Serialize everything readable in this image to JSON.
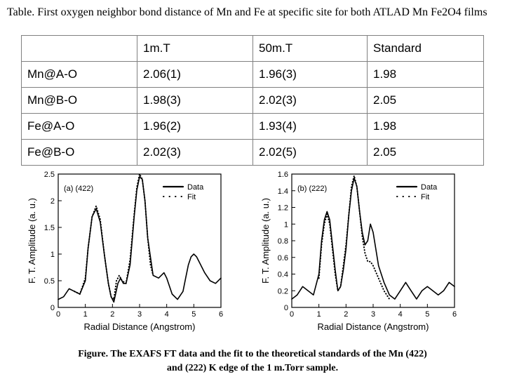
{
  "table_caption": "Table. First oxygen neighbor bond distance of Mn and Fe at specific site for both ATLAD Mn Fe2O4 films",
  "table": {
    "headers": [
      "",
      "1m.T",
      "50m.T",
      "Standard"
    ],
    "rows": [
      [
        "Mn@A-O",
        "2.06(1)",
        "1.96(3)",
        "1.98"
      ],
      [
        "Mn@B-O",
        "1.98(3)",
        "2.02(3)",
        "2.05"
      ],
      [
        "Fe@A-O",
        "1.96(2)",
        "1.93(4)",
        "1.98"
      ],
      [
        "Fe@B-O",
        "2.02(3)",
        "2.02(5)",
        "2.05"
      ]
    ]
  },
  "figure_caption_line1": "Figure. The EXAFS FT data and the fit to the theoretical standards of the Mn (422)",
  "figure_caption_line2": "and (222) K edge of the 1 m.Torr sample.",
  "colors": {
    "line": "#000000",
    "grid": "#808080"
  },
  "chart_data": [
    {
      "type": "line",
      "panel_label": "(a) (422)",
      "xlabel": "Radial Distance (Angstrom)",
      "ylabel": "F. T. Amplitude (a. u.)",
      "xlim": [
        0,
        6
      ],
      "ylim": [
        0,
        2.5
      ],
      "xticks": [
        "0",
        "1",
        "2",
        "3",
        "4",
        "5",
        "6"
      ],
      "yticks": [
        "0",
        "0.5",
        "1",
        "1.5",
        "2",
        "2.5"
      ],
      "legend": "top-right",
      "series": [
        {
          "name": "Data",
          "style": "solid",
          "x": [
            0,
            0.2,
            0.4,
            0.6,
            0.8,
            1.0,
            1.1,
            1.25,
            1.4,
            1.55,
            1.7,
            1.85,
            1.95,
            2.05,
            2.2,
            2.3,
            2.4,
            2.5,
            2.65,
            2.8,
            2.9,
            3.0,
            3.1,
            3.2,
            3.3,
            3.5,
            3.7,
            3.9,
            4.0,
            4.2,
            4.4,
            4.6,
            4.7,
            4.8,
            4.9,
            5.0,
            5.1,
            5.2,
            5.4,
            5.6,
            5.8,
            6.0
          ],
          "y": [
            0.15,
            0.2,
            0.35,
            0.3,
            0.25,
            0.5,
            1.1,
            1.7,
            1.85,
            1.6,
            1.0,
            0.45,
            0.2,
            0.1,
            0.45,
            0.55,
            0.45,
            0.45,
            0.8,
            1.7,
            2.2,
            2.45,
            2.4,
            2.0,
            1.3,
            0.6,
            0.55,
            0.65,
            0.55,
            0.25,
            0.15,
            0.3,
            0.55,
            0.8,
            0.95,
            1.0,
            0.95,
            0.85,
            0.65,
            0.5,
            0.45,
            0.55
          ]
        },
        {
          "name": "Fit",
          "style": "dotted",
          "x": [
            0.6,
            0.8,
            1.0,
            1.1,
            1.25,
            1.4,
            1.55,
            1.7,
            1.85,
            1.95,
            2.05,
            2.15,
            2.25,
            2.35,
            2.5,
            2.65,
            2.8,
            2.9,
            3.0,
            3.1,
            3.2,
            3.3,
            3.4,
            3.5
          ],
          "y": [
            0.3,
            0.25,
            0.55,
            1.1,
            1.7,
            1.9,
            1.65,
            1.0,
            0.45,
            0.2,
            0.15,
            0.5,
            0.6,
            0.5,
            0.45,
            0.9,
            1.75,
            2.25,
            2.5,
            2.4,
            2.0,
            1.3,
            0.8,
            0.6
          ]
        }
      ]
    },
    {
      "type": "line",
      "panel_label": "(b) (222)",
      "xlabel": "Radial Distance (Angstrom)",
      "ylabel": "F. T. Amplitude (a. u.)",
      "xlim": [
        0,
        6
      ],
      "ylim": [
        0,
        1.6
      ],
      "xticks": [
        "0",
        "1",
        "2",
        "3",
        "4",
        "5",
        "6"
      ],
      "yticks": [
        "0",
        "0.2",
        "0.4",
        "0.6",
        "0.8",
        "1",
        "1.2",
        "1.4",
        "1.6"
      ],
      "legend": "top-right",
      "series": [
        {
          "name": "Data",
          "style": "solid",
          "x": [
            0,
            0.2,
            0.4,
            0.6,
            0.8,
            1.0,
            1.1,
            1.2,
            1.3,
            1.4,
            1.5,
            1.6,
            1.7,
            1.8,
            1.9,
            2.0,
            2.1,
            2.2,
            2.3,
            2.4,
            2.5,
            2.6,
            2.7,
            2.8,
            2.9,
            3.0,
            3.2,
            3.4,
            3.6,
            3.8,
            4.0,
            4.2,
            4.4,
            4.6,
            4.8,
            5.0,
            5.2,
            5.4,
            5.6,
            5.8,
            6.0
          ],
          "y": [
            0.1,
            0.15,
            0.25,
            0.2,
            0.15,
            0.4,
            0.8,
            1.05,
            1.15,
            1.05,
            0.75,
            0.45,
            0.2,
            0.25,
            0.45,
            0.7,
            1.1,
            1.4,
            1.55,
            1.45,
            1.15,
            0.9,
            0.75,
            0.8,
            1.0,
            0.9,
            0.5,
            0.3,
            0.15,
            0.1,
            0.2,
            0.3,
            0.2,
            0.1,
            0.2,
            0.25,
            0.2,
            0.15,
            0.2,
            0.3,
            0.25
          ]
        },
        {
          "name": "Fit",
          "style": "dotted",
          "x": [
            1.0,
            1.1,
            1.2,
            1.3,
            1.4,
            1.5,
            1.6,
            1.7,
            1.8,
            1.9,
            2.0,
            2.1,
            2.2,
            2.3,
            2.4,
            2.5,
            2.6,
            2.7,
            2.8,
            2.9,
            3.0,
            3.2,
            3.4,
            3.6
          ],
          "y": [
            0.35,
            0.75,
            1.0,
            1.12,
            1.0,
            0.7,
            0.4,
            0.2,
            0.25,
            0.5,
            0.75,
            1.1,
            1.45,
            1.58,
            1.45,
            1.15,
            0.85,
            0.65,
            0.55,
            0.55,
            0.5,
            0.35,
            0.2,
            0.1
          ]
        }
      ]
    }
  ]
}
